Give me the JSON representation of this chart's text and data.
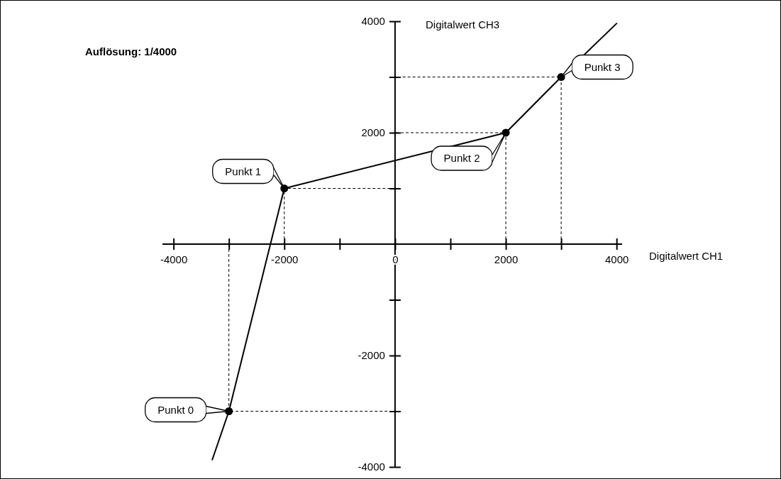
{
  "chart_data": {
    "type": "line",
    "title": "Auflösung: 1/4000",
    "xlabel": "Digitalwert CH1",
    "ylabel": "Digitalwert CH3",
    "xlim": [
      -4200,
      4100
    ],
    "ylim": [
      -4000,
      4000
    ],
    "xticks": [
      -4000,
      {
        "value": -3000,
        "label": null
      },
      -2000,
      {
        "value": -1000,
        "label": null
      },
      0,
      {
        "value": 1000,
        "label": null
      },
      2000,
      {
        "value": 3000,
        "label": null
      },
      4000
    ],
    "yticks": [
      -4000,
      {
        "value": -3000,
        "label": null
      },
      -2000,
      {
        "value": -1000,
        "label": null
      },
      {
        "value": 1000,
        "label": null
      },
      2000,
      {
        "value": 3000,
        "label": null
      },
      4000
    ],
    "grid": false,
    "series": [
      {
        "type": "line",
        "color": "#000000",
        "marker": "none",
        "x": [
          -3300,
          -3000,
          -2000,
          2000,
          3000,
          4000
        ],
        "values": [
          -3870,
          -3000,
          1000,
          2000,
          3000,
          3960
        ]
      },
      {
        "type": "scatter",
        "color": "#000000",
        "marker": "circle",
        "line_style": "dashed",
        "x": [
          -3000,
          -2000,
          2000,
          3000
        ],
        "values": [
          -3000,
          1000,
          2000,
          3000
        ]
      }
    ],
    "annotations": [
      {
        "text": "Punkt 0",
        "x": -3000,
        "y": -3000
      },
      {
        "text": "Punkt 1",
        "x": -2000,
        "y": 1000
      },
      {
        "text": "Punkt 2",
        "x": 2000,
        "y": 2000
      },
      {
        "text": "Punkt 3",
        "x": 3000,
        "y": 3000
      }
    ]
  }
}
